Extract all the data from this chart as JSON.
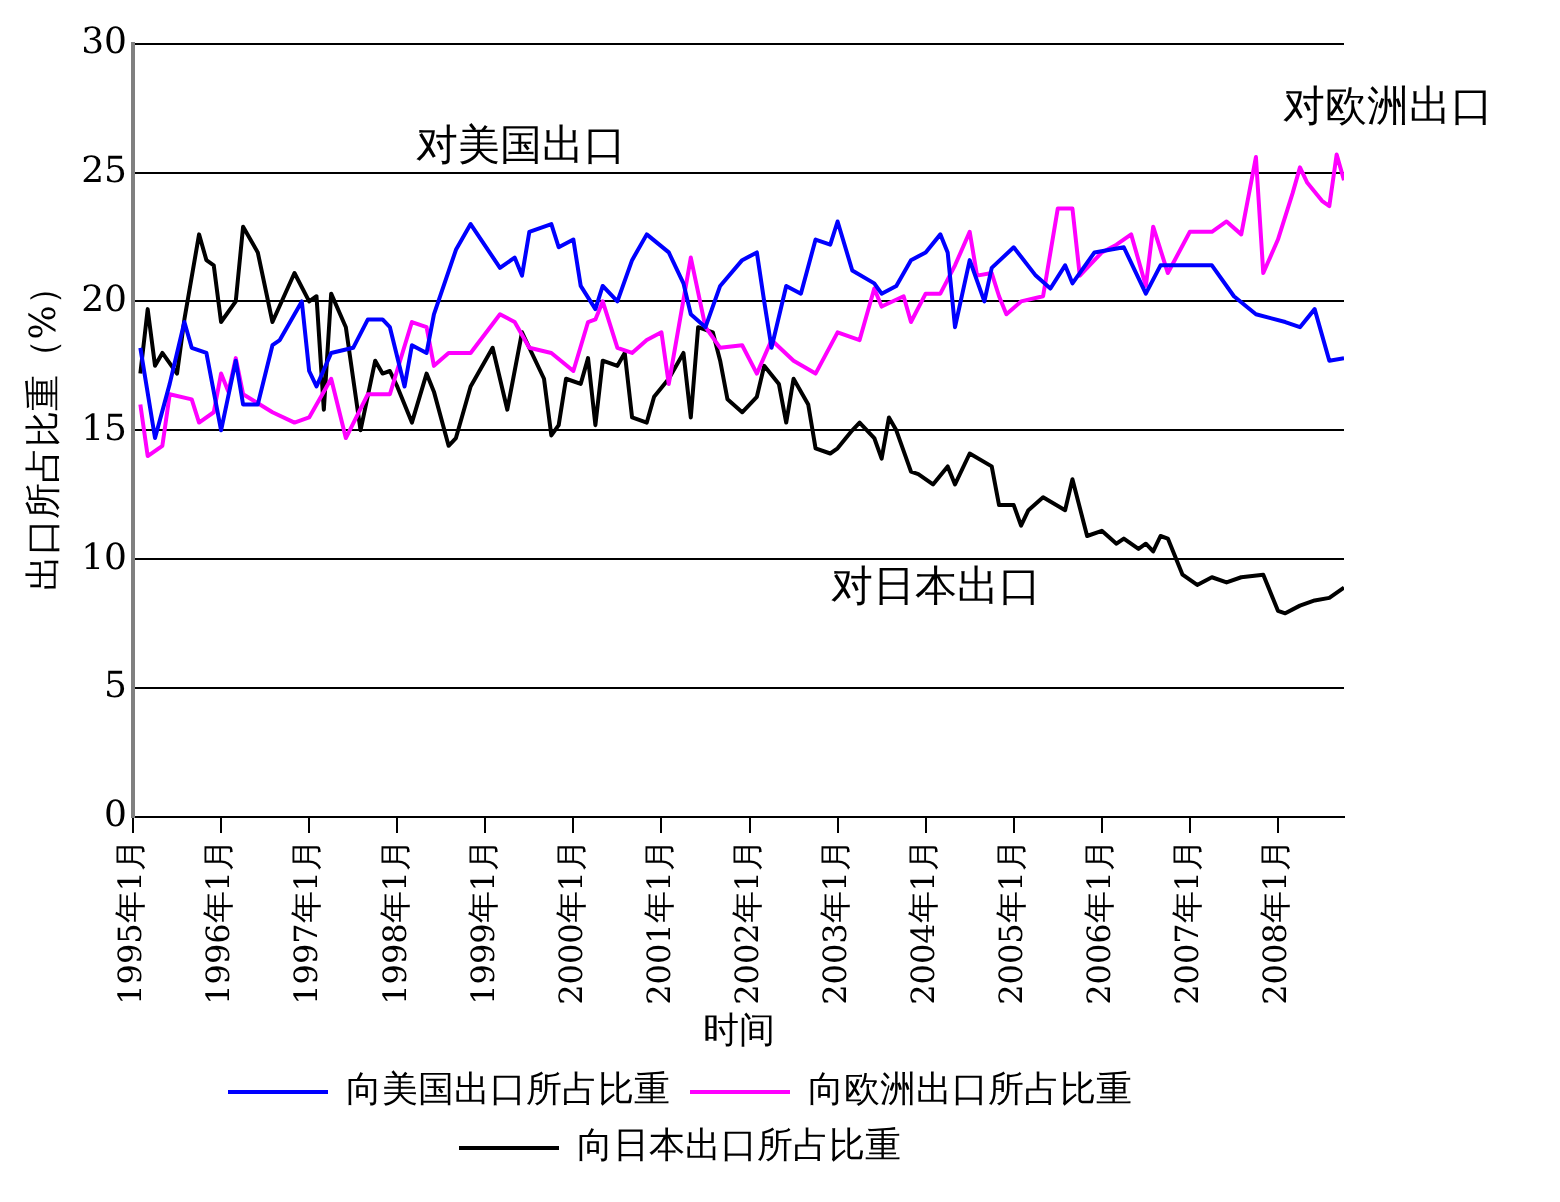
{
  "chart_data": {
    "type": "line",
    "xlabel": "时间",
    "ylabel": "出口所占比重（%）",
    "xlim": [
      "1995-01",
      "2008-10"
    ],
    "ylim": [
      0,
      30
    ],
    "yticks": [
      0,
      5,
      10,
      15,
      20,
      25,
      30
    ],
    "xticks": [
      {
        "value": "1995-01",
        "label": "1995年1月"
      },
      {
        "value": "1996-01",
        "label": "1996年1月"
      },
      {
        "value": "1997-01",
        "label": "1997年1月"
      },
      {
        "value": "1998-01",
        "label": "1998年1月"
      },
      {
        "value": "1999-01",
        "label": "1999年1月"
      },
      {
        "value": "2000-01",
        "label": "2000年1月"
      },
      {
        "value": "2001-01",
        "label": "2001年1月"
      },
      {
        "value": "2002-01",
        "label": "2002年1月"
      },
      {
        "value": "2003-01",
        "label": "2003年1月"
      },
      {
        "value": "2004-01",
        "label": "2004年1月"
      },
      {
        "value": "2005-01",
        "label": "2005年1月"
      },
      {
        "value": "2006-01",
        "label": "2006年1月"
      },
      {
        "value": "2007-01",
        "label": "2007年1月"
      },
      {
        "value": "2008-01",
        "label": "2008年1月"
      }
    ],
    "grid": "y",
    "legend": "bottom",
    "marker": "none",
    "line_style": "solid",
    "annotations": [
      "对美国出口",
      "对欧洲出口",
      "对日本出口"
    ],
    "series": [
      {
        "name": "向美国出口所占比重",
        "color": "#0000ff",
        "x": [
          "1995-02",
          "1995-04",
          "1995-06",
          "1995-08",
          "1995-09",
          "1995-11",
          "1996-01",
          "1996-03",
          "1996-04",
          "1996-06",
          "1996-08",
          "1996-09",
          "1996-12",
          "1997-01",
          "1997-02",
          "1997-04",
          "1997-07",
          "1997-09",
          "1997-11",
          "1997-12",
          "1998-02",
          "1998-03",
          "1998-05",
          "1998-06",
          "1998-09",
          "1998-11",
          "1999-03",
          "1999-05",
          "1999-06",
          "1999-07",
          "1999-10",
          "1999-11",
          "2000-01",
          "2000-02",
          "2000-04",
          "2000-05",
          "2000-07",
          "2000-09",
          "2000-11",
          "2001-02",
          "2001-04",
          "2001-05",
          "2001-07",
          "2001-09",
          "2001-12",
          "2002-02",
          "2002-03",
          "2002-04",
          "2002-06",
          "2002-08",
          "2002-10",
          "2002-12",
          "2003-01",
          "2003-03",
          "2003-06",
          "2003-07",
          "2003-09",
          "2003-11",
          "2004-01",
          "2004-03",
          "2004-04",
          "2004-05",
          "2004-07",
          "2004-09",
          "2004-10",
          "2005-01",
          "2005-04",
          "2005-06",
          "2005-08",
          "2005-09",
          "2005-12",
          "2006-04",
          "2006-07",
          "2006-09",
          "2007-01",
          "2007-04",
          "2007-07",
          "2007-10",
          "2008-02",
          "2008-04",
          "2008-06",
          "2008-08",
          "2008-10"
        ],
        "values": [
          18.2,
          14.7,
          16.8,
          19.2,
          18.2,
          18,
          15,
          17.7,
          16,
          16,
          18.3,
          18.5,
          20,
          17.3,
          16.7,
          18,
          18.2,
          19.3,
          19.3,
          19,
          16.7,
          18.3,
          18,
          19.5,
          22,
          23,
          21.3,
          21.7,
          21,
          22.7,
          23,
          22.1,
          22.4,
          20.6,
          19.7,
          20.6,
          20,
          21.6,
          22.6,
          21.9,
          20.7,
          19.5,
          19,
          20.6,
          21.6,
          21.9,
          20,
          18.2,
          20.6,
          20.3,
          22.4,
          22.2,
          23.1,
          21.2,
          20.7,
          20.3,
          20.6,
          21.6,
          21.9,
          22.6,
          21.9,
          19,
          21.6,
          20,
          21.3,
          22.1,
          21,
          20.5,
          21.4,
          20.7,
          21.9,
          22.1,
          20.3,
          21.4,
          21.4,
          21.4,
          20.2,
          19.5,
          19.2,
          19,
          19.7,
          17.7,
          17.8
        ]
      },
      {
        "name": "向欧洲出口所占比重",
        "color": "#ff00ff",
        "x": [
          "1995-02",
          "1995-03",
          "1995-05",
          "1995-06",
          "1995-09",
          "1995-10",
          "1995-12",
          "1996-01",
          "1996-02",
          "1996-03",
          "1996-04",
          "1996-08",
          "1996-11",
          "1997-01",
          "1997-04",
          "1997-06",
          "1997-09",
          "1997-12",
          "1998-03",
          "1998-05",
          "1998-06",
          "1998-08",
          "1998-11",
          "1999-03",
          "1999-05",
          "1999-07",
          "1999-10",
          "2000-01",
          "2000-03",
          "2000-04",
          "2000-05",
          "2000-07",
          "2000-09",
          "2000-11",
          "2001-01",
          "2001-02",
          "2001-05",
          "2001-07",
          "2001-09",
          "2001-12",
          "2002-02",
          "2002-04",
          "2002-07",
          "2002-10",
          "2003-01",
          "2003-04",
          "2003-06",
          "2003-07",
          "2003-10",
          "2003-11",
          "2004-01",
          "2004-03",
          "2004-05",
          "2004-07",
          "2004-08",
          "2004-10",
          "2004-11",
          "2004-12",
          "2005-02",
          "2005-05",
          "2005-07",
          "2005-09",
          "2005-10",
          "2006-01",
          "2006-03",
          "2006-05",
          "2006-07",
          "2006-08",
          "2006-10",
          "2007-01",
          "2007-04",
          "2007-06",
          "2007-08",
          "2007-10",
          "2007-11",
          "2008-01",
          "2008-03",
          "2008-04",
          "2008-05",
          "2008-07",
          "2008-08",
          "2008-09",
          "2008-10"
        ],
        "values": [
          16,
          14,
          14.4,
          16.4,
          16.2,
          15.3,
          15.7,
          17.2,
          16.5,
          17.8,
          16.4,
          15.7,
          15.3,
          15.5,
          17,
          14.7,
          16.4,
          16.4,
          19.2,
          19,
          17.5,
          18,
          18,
          19.5,
          19.2,
          18.2,
          18,
          17.3,
          19.2,
          19.3,
          20,
          18.2,
          18,
          18.5,
          18.8,
          16.8,
          21.7,
          19,
          18.2,
          18.3,
          17.2,
          18.5,
          17.7,
          17.2,
          18.8,
          18.5,
          20.5,
          19.8,
          20.2,
          19.2,
          20.3,
          20.3,
          21.4,
          22.7,
          21,
          21.1,
          20.2,
          19.5,
          20,
          20.2,
          23.6,
          23.6,
          21,
          21.9,
          22.2,
          22.6,
          20.6,
          22.9,
          21.1,
          22.7,
          22.7,
          23.1,
          22.6,
          25.6,
          21.1,
          22.4,
          24.2,
          25.2,
          24.6,
          23.9,
          23.7,
          25.7,
          24.7
        ]
      },
      {
        "name": "向日本出口所占比重",
        "color": "#000000",
        "x": [
          "1995-02",
          "1995-03",
          "1995-04",
          "1995-05",
          "1995-07",
          "1995-08",
          "1995-10",
          "1995-11",
          "1995-12",
          "1996-01",
          "1996-03",
          "1996-04",
          "1996-06",
          "1996-08",
          "1996-11",
          "1997-01",
          "1997-02",
          "1997-03",
          "1997-04",
          "1997-06",
          "1997-08",
          "1997-10",
          "1997-11",
          "1997-12",
          "1998-01",
          "1998-03",
          "1998-05",
          "1998-06",
          "1998-08",
          "1998-09",
          "1998-11",
          "1999-02",
          "1999-04",
          "1999-06",
          "1999-09",
          "1999-10",
          "1999-11",
          "1999-12",
          "2000-02",
          "2000-03",
          "2000-04",
          "2000-05",
          "2000-07",
          "2000-08",
          "2000-09",
          "2000-11",
          "2000-12",
          "2001-02",
          "2001-04",
          "2001-05",
          "2001-06",
          "2001-08",
          "2001-09",
          "2001-10",
          "2001-12",
          "2002-02",
          "2002-03",
          "2002-05",
          "2002-06",
          "2002-07",
          "2002-09",
          "2002-10",
          "2002-12",
          "2003-01",
          "2003-03",
          "2003-04",
          "2003-06",
          "2003-07",
          "2003-08",
          "2003-09",
          "2003-11",
          "2003-12",
          "2004-02",
          "2004-04",
          "2004-05",
          "2004-07",
          "2004-10",
          "2004-11",
          "2005-01",
          "2005-02",
          "2005-03",
          "2005-05",
          "2005-08",
          "2005-09",
          "2005-11",
          "2006-01",
          "2006-03",
          "2006-04",
          "2006-06",
          "2006-07",
          "2006-08",
          "2006-09",
          "2006-10",
          "2006-12",
          "2007-02",
          "2007-04",
          "2007-06",
          "2007-08",
          "2007-11",
          "2008-01",
          "2008-02",
          "2008-04",
          "2008-06",
          "2008-08",
          "2008-10"
        ],
        "values": [
          17.2,
          19.7,
          17.5,
          18,
          17.2,
          19.3,
          22.6,
          21.6,
          21.4,
          19.2,
          20,
          22.9,
          21.9,
          19.2,
          21.1,
          20,
          20.2,
          15.8,
          20.3,
          19,
          15,
          17.7,
          17.2,
          17.3,
          16.7,
          15.3,
          17.2,
          16.5,
          14.4,
          14.7,
          16.7,
          18.2,
          15.8,
          18.8,
          17,
          14.8,
          15.2,
          17,
          16.8,
          17.8,
          15.2,
          17.7,
          17.5,
          18,
          15.5,
          15.3,
          16.3,
          17,
          18,
          15.5,
          19,
          18.8,
          17.7,
          16.2,
          15.7,
          16.3,
          17.5,
          16.8,
          15.3,
          17,
          16,
          14.3,
          14.1,
          14.3,
          15,
          15.3,
          14.7,
          13.9,
          15.5,
          15,
          13.4,
          13.3,
          12.9,
          13.6,
          12.9,
          14.1,
          13.6,
          12.1,
          12.1,
          11.3,
          11.9,
          12.4,
          11.9,
          13.1,
          10.9,
          11.1,
          10.6,
          10.8,
          10.4,
          10.6,
          10.3,
          10.9,
          10.8,
          9.4,
          9,
          9.3,
          9.1,
          9.3,
          9.4,
          8,
          7.9,
          8.2,
          8.4,
          8.5,
          8.9
        ]
      }
    ]
  }
}
